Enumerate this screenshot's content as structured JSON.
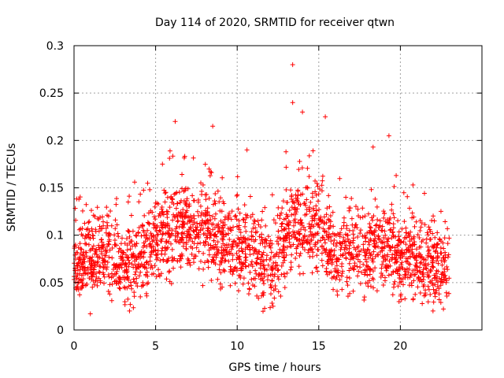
{
  "chart_data": {
    "type": "scatter",
    "title": "Day 114 of 2020, SRMTID for receiver qtwn",
    "xlabel": "GPS time / hours",
    "ylabel": "SRMTID / TECUs",
    "xlim": [
      0,
      25
    ],
    "ylim": [
      0,
      0.3
    ],
    "xticks": [
      0,
      5,
      10,
      15,
      20
    ],
    "xtick_labels": [
      "0",
      "5",
      "10",
      "15",
      "20"
    ],
    "yticks": [
      0,
      0.05,
      0.1,
      0.15,
      0.2,
      0.25,
      0.3
    ],
    "ytick_labels": [
      "0",
      "0.05",
      "0.1",
      "0.15",
      "0.2",
      "0.25",
      "0.3"
    ],
    "grid": true,
    "marker": "+",
    "marker_color": "#ff0000",
    "series": [
      {
        "name": "SRMTID",
        "x_range": [
          0,
          23
        ],
        "profile_hours": [
          0,
          1,
          2,
          3,
          4,
          5,
          6,
          7,
          8,
          9,
          10,
          11,
          12,
          13,
          13.5,
          14,
          15,
          16,
          17,
          18,
          19,
          20,
          21,
          22,
          23
        ],
        "profile_median": [
          0.07,
          0.075,
          0.08,
          0.068,
          0.072,
          0.1,
          0.1,
          0.11,
          0.105,
          0.09,
          0.085,
          0.08,
          0.065,
          0.09,
          0.12,
          0.105,
          0.11,
          0.08,
          0.085,
          0.08,
          0.09,
          0.08,
          0.07,
          0.065,
          0.06
        ],
        "highlights": [
          {
            "x": 13.4,
            "y": 0.28
          },
          {
            "x": 13.4,
            "y": 0.24
          },
          {
            "x": 6.2,
            "y": 0.22
          },
          {
            "x": 15.4,
            "y": 0.225
          },
          {
            "x": 8.5,
            "y": 0.215
          },
          {
            "x": 14.0,
            "y": 0.23
          },
          {
            "x": 19.3,
            "y": 0.205
          },
          {
            "x": 10.6,
            "y": 0.19
          },
          {
            "x": 0.3,
            "y": 0.138
          },
          {
            "x": 1.0,
            "y": 0.017
          },
          {
            "x": 3.4,
            "y": 0.02
          },
          {
            "x": 22.0,
            "y": 0.02
          },
          {
            "x": 12.2,
            "y": 0.025
          }
        ]
      }
    ]
  }
}
